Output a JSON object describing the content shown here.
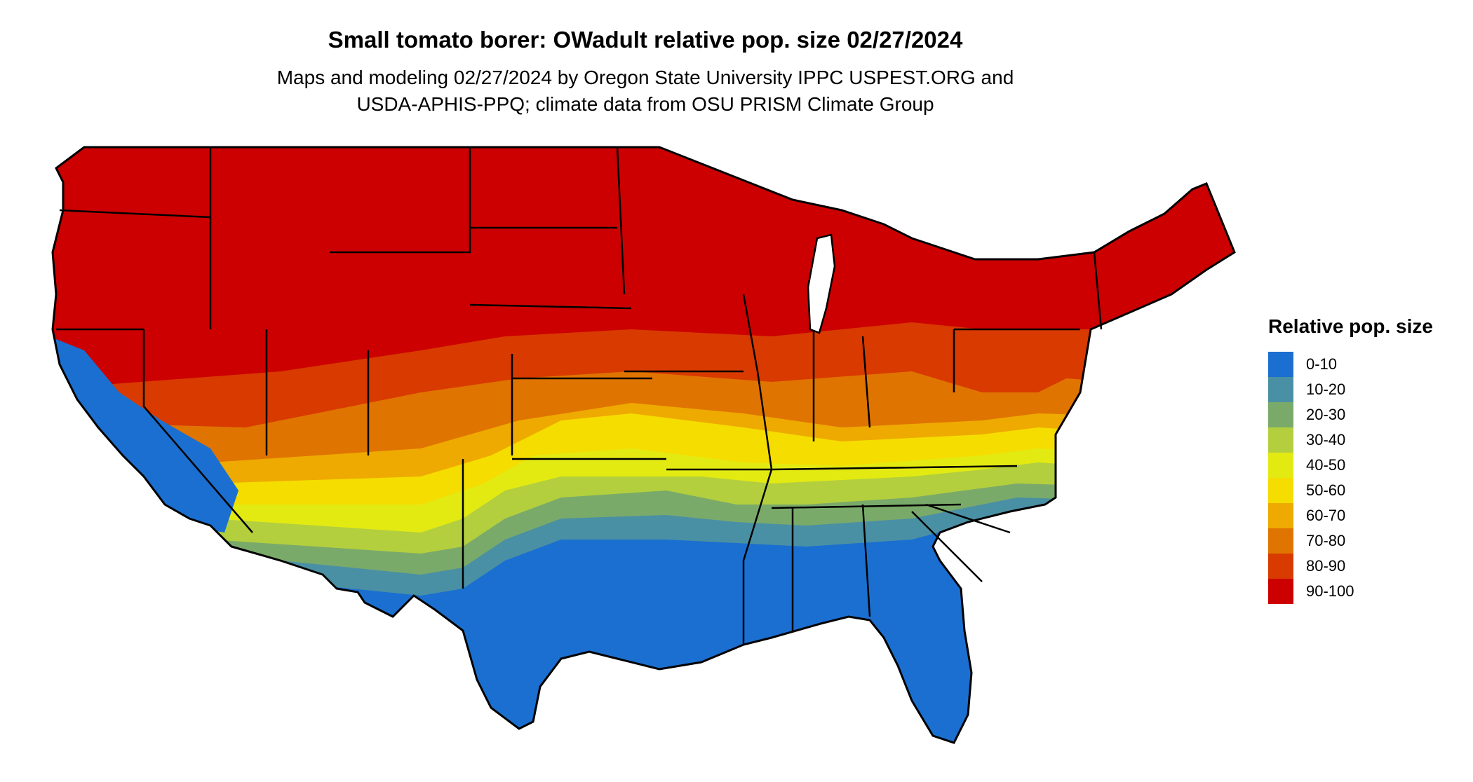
{
  "title": "Small tomato borer: OWadult relative pop. size 02/27/2024",
  "subtitle_lines": [
    "Maps and modeling 02/27/2024 by Oregon State University IPPC USPEST.ORG and",
    "USDA-APHIS-PPQ; climate data from OSU PRISM Climate Group"
  ],
  "legend": {
    "title": "Relative pop. size",
    "items": [
      {
        "label": "0-10",
        "color": "#1b6fd0"
      },
      {
        "label": "10-20",
        "color": "#4a90a4"
      },
      {
        "label": "20-30",
        "color": "#7aaa6a"
      },
      {
        "label": "30-40",
        "color": "#b3cf3e"
      },
      {
        "label": "40-50",
        "color": "#e3ea12"
      },
      {
        "label": "50-60",
        "color": "#f5dd00"
      },
      {
        "label": "60-70",
        "color": "#eeaa00"
      },
      {
        "label": "70-80",
        "color": "#e07400"
      },
      {
        "label": "80-90",
        "color": "#d83a00"
      },
      {
        "label": "90-100",
        "color": "#cc0000"
      }
    ]
  }
}
